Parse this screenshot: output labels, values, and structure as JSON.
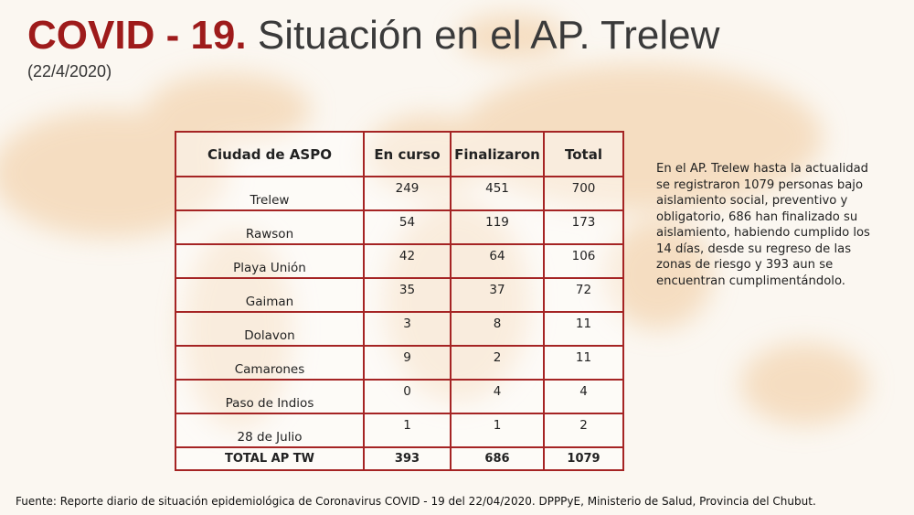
{
  "header": {
    "title_highlight": "COVID - 19.",
    "title_rest": "Situación en el AP. Trelew",
    "date": "(22/4/2020)"
  },
  "table": {
    "columns": [
      "Ciudad de ASPO",
      "En curso",
      "Finalizaron",
      "Total"
    ],
    "rows": [
      [
        "Trelew",
        249,
        451,
        700
      ],
      [
        "Rawson",
        54,
        119,
        173
      ],
      [
        "Playa Unión",
        42,
        64,
        106
      ],
      [
        "Gaiman",
        35,
        37,
        72
      ],
      [
        "Dolavon",
        3,
        8,
        11
      ],
      [
        "Camarones",
        9,
        2,
        11
      ],
      [
        "Paso de Indios",
        0,
        4,
        4
      ],
      [
        "28 de Julio",
        1,
        1,
        2
      ]
    ],
    "total_row": [
      "TOTAL AP TW",
      393,
      686,
      1079
    ]
  },
  "side_note": "En el AP. Trelew hasta la actualidad se registraron 1079 personas bajo aislamiento social, preventivo y obligatorio, 686 han finalizado su aislamiento, habiendo cumplido los 14 días, desde su regreso de las zonas de riesgo y 393 aun se encuentran cumplimentándolo.",
  "footer": "Fuente: Reporte diario de situación epidemiológica de Coronavirus COVID - 19 del 22/04/2020.  DPPPyE, Ministerio de Salud, Provincia del Chubut."
}
